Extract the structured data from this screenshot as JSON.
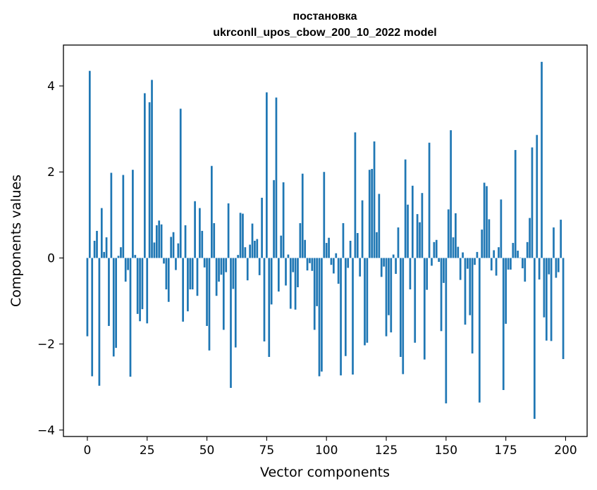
{
  "chart_data": {
    "type": "bar",
    "title_line1": "постановка",
    "title_line2": "ukrconll_upos_cbow_200_10_2022 model",
    "xlabel": "Vector components",
    "ylabel": "Components values",
    "xlim": [
      -10,
      209
    ],
    "ylim": [
      -4.15,
      4.95
    ],
    "x_ticks": [
      0,
      25,
      50,
      75,
      100,
      125,
      150,
      175,
      200
    ],
    "x_tick_labels": [
      "0",
      "25",
      "50",
      "75",
      "100",
      "125",
      "150",
      "175",
      "200"
    ],
    "y_ticks": [
      -4,
      -2,
      0,
      2,
      4
    ],
    "y_tick_labels": [
      "−4",
      "−2",
      "0",
      "2",
      "4"
    ],
    "bar_color": "#1f77b4",
    "grid": false,
    "values": [
      -1.82,
      4.35,
      -2.75,
      0.4,
      0.63,
      -2.97,
      1.16,
      0.14,
      0.48,
      -1.58,
      1.98,
      -2.29,
      -2.09,
      0.05,
      0.25,
      1.93,
      -0.55,
      -0.28,
      -2.76,
      2.05,
      0.07,
      -1.3,
      -1.47,
      -1.19,
      3.83,
      -1.52,
      3.62,
      4.14,
      0.36,
      0.76,
      0.87,
      0.78,
      -0.13,
      -0.73,
      -1.02,
      0.49,
      0.6,
      -0.28,
      0.34,
      3.47,
      -1.48,
      0.76,
      -1.24,
      -0.73,
      -0.73,
      1.32,
      -0.88,
      1.16,
      0.63,
      -0.22,
      -1.58,
      -2.15,
      2.14,
      0.81,
      -0.88,
      -0.55,
      -0.39,
      -1.67,
      -0.33,
      1.27,
      -3.02,
      -0.72,
      -2.08,
      0.07,
      1.05,
      1.03,
      0.25,
      -0.52,
      0.31,
      0.8,
      0.4,
      0.44,
      -0.4,
      1.4,
      -1.94,
      3.85,
      -2.3,
      -1.08,
      1.81,
      3.73,
      -0.78,
      0.52,
      1.76,
      -0.64,
      0.08,
      -1.18,
      -0.33,
      -1.2,
      -0.68,
      0.81,
      1.96,
      0.42,
      -0.29,
      -0.12,
      -0.3,
      -1.67,
      -1.12,
      -2.75,
      -2.64,
      2.0,
      0.35,
      0.47,
      -0.16,
      -0.36,
      0.11,
      -0.6,
      -2.73,
      0.81,
      -2.28,
      -0.23,
      0.4,
      -2.71,
      2.92,
      0.58,
      -0.43,
      1.34,
      -2.03,
      -1.97,
      2.05,
      2.07,
      2.71,
      0.6,
      1.49,
      -0.44,
      -0.2,
      -1.82,
      -1.33,
      -1.73,
      0.08,
      -0.37,
      0.71,
      -2.3,
      -2.7,
      2.29,
      1.24,
      -0.73,
      1.68,
      -1.97,
      1.02,
      0.83,
      1.51,
      -2.36,
      -0.74,
      2.68,
      -0.18,
      0.37,
      0.42,
      -0.09,
      -1.7,
      -0.58,
      -3.38,
      1.13,
      2.97,
      0.48,
      1.04,
      0.26,
      -0.51,
      0.13,
      -1.55,
      -0.25,
      -1.33,
      -2.22,
      -0.16,
      0.14,
      -3.36,
      0.66,
      1.75,
      1.67,
      0.9,
      -0.29,
      0.18,
      -0.41,
      0.25,
      1.36,
      -3.07,
      -1.53,
      -0.27,
      -0.27,
      0.35,
      2.51,
      0.17,
      0.01,
      -0.24,
      -0.55,
      0.37,
      0.93,
      2.57,
      -3.74,
      2.86,
      -0.5,
      4.56,
      -1.38,
      -1.92,
      -0.38,
      -1.93,
      0.71,
      -0.46,
      -0.33,
      0.89,
      -2.35
    ]
  }
}
